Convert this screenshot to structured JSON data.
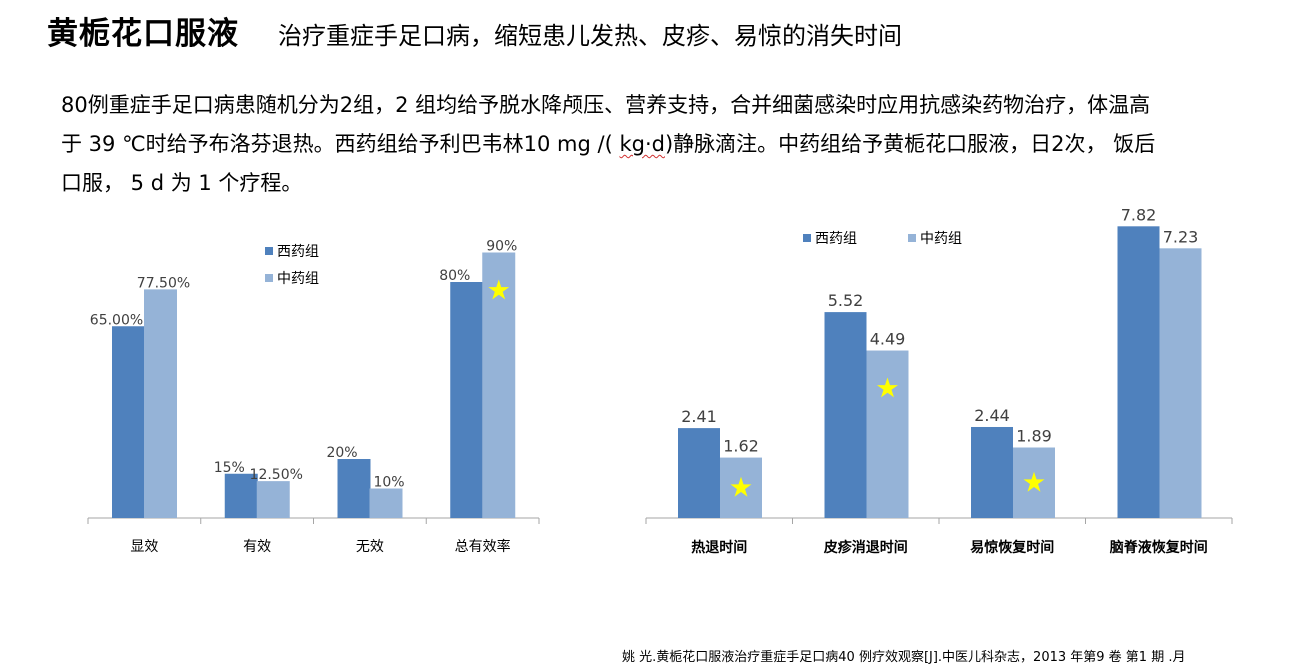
{
  "header": {
    "title": "黄栀花口服液",
    "subtitle": "治疗重症手足口病，缩短患儿发热、皮疹、易惊的消失时间"
  },
  "description": {
    "line1": "80例重症手足口病患随机分为2组，2 组均给予脱水降颅压、营养支持，合并细菌感染时应用抗感染药物治疗，体温高",
    "line2_a": "于 39 ℃时给予布洛芬退热。西药组给予利巴韦林10  mg /( ",
    "line2_b": "kg·d",
    "line2_c": ")静脉滴注。中药组给予黄栀花口服液，日2次，  饭后",
    "line3": "口服，  5 d 为 1 个疗程。"
  },
  "colors": {
    "western": "#4f81bd",
    "chinese": "#95b3d7",
    "star": "#ffff00",
    "axis": "#a6a6a6"
  },
  "chart_data": [
    {
      "type": "bar",
      "categories": [
        "显效",
        "有效",
        "无效",
        "总有效率"
      ],
      "series": [
        {
          "name": "西药组",
          "values": [
            65.0,
            15,
            20,
            80
          ],
          "labels": [
            "65.00%",
            "15%",
            "20%",
            "80%"
          ]
        },
        {
          "name": "中药组",
          "values": [
            77.5,
            12.5,
            10,
            90
          ],
          "labels": [
            "77.50%",
            "12.50%",
            "10%",
            "90%"
          ]
        }
      ],
      "unit": "%",
      "starred": [
        {
          "series": 1,
          "category": 3
        }
      ],
      "legend_position": "top-center",
      "grid": false
    },
    {
      "type": "bar",
      "categories": [
        "热退时间",
        "皮疹消退时间",
        "易惊恢复时间",
        "脑脊液恢复时间"
      ],
      "series": [
        {
          "name": "西药组",
          "values": [
            2.41,
            5.52,
            2.44,
            7.82
          ],
          "labels": [
            "2.41",
            "5.52",
            "2.44",
            "7.82"
          ]
        },
        {
          "name": "中药组",
          "values": [
            1.62,
            4.49,
            1.89,
            7.23
          ],
          "labels": [
            "1.62",
            "4.49",
            "1.89",
            "7.23"
          ]
        }
      ],
      "starred": [
        {
          "series": 1,
          "category": 0
        },
        {
          "series": 1,
          "category": 1
        },
        {
          "series": 1,
          "category": 2
        }
      ],
      "legend_position": "top-left",
      "grid": false
    }
  ],
  "citation": "姚 光.黄栀花口服液治疗重症手足口病40 例疗效观察[J].中医儿科杂志，2013 年第9 卷 第1 期 .月"
}
